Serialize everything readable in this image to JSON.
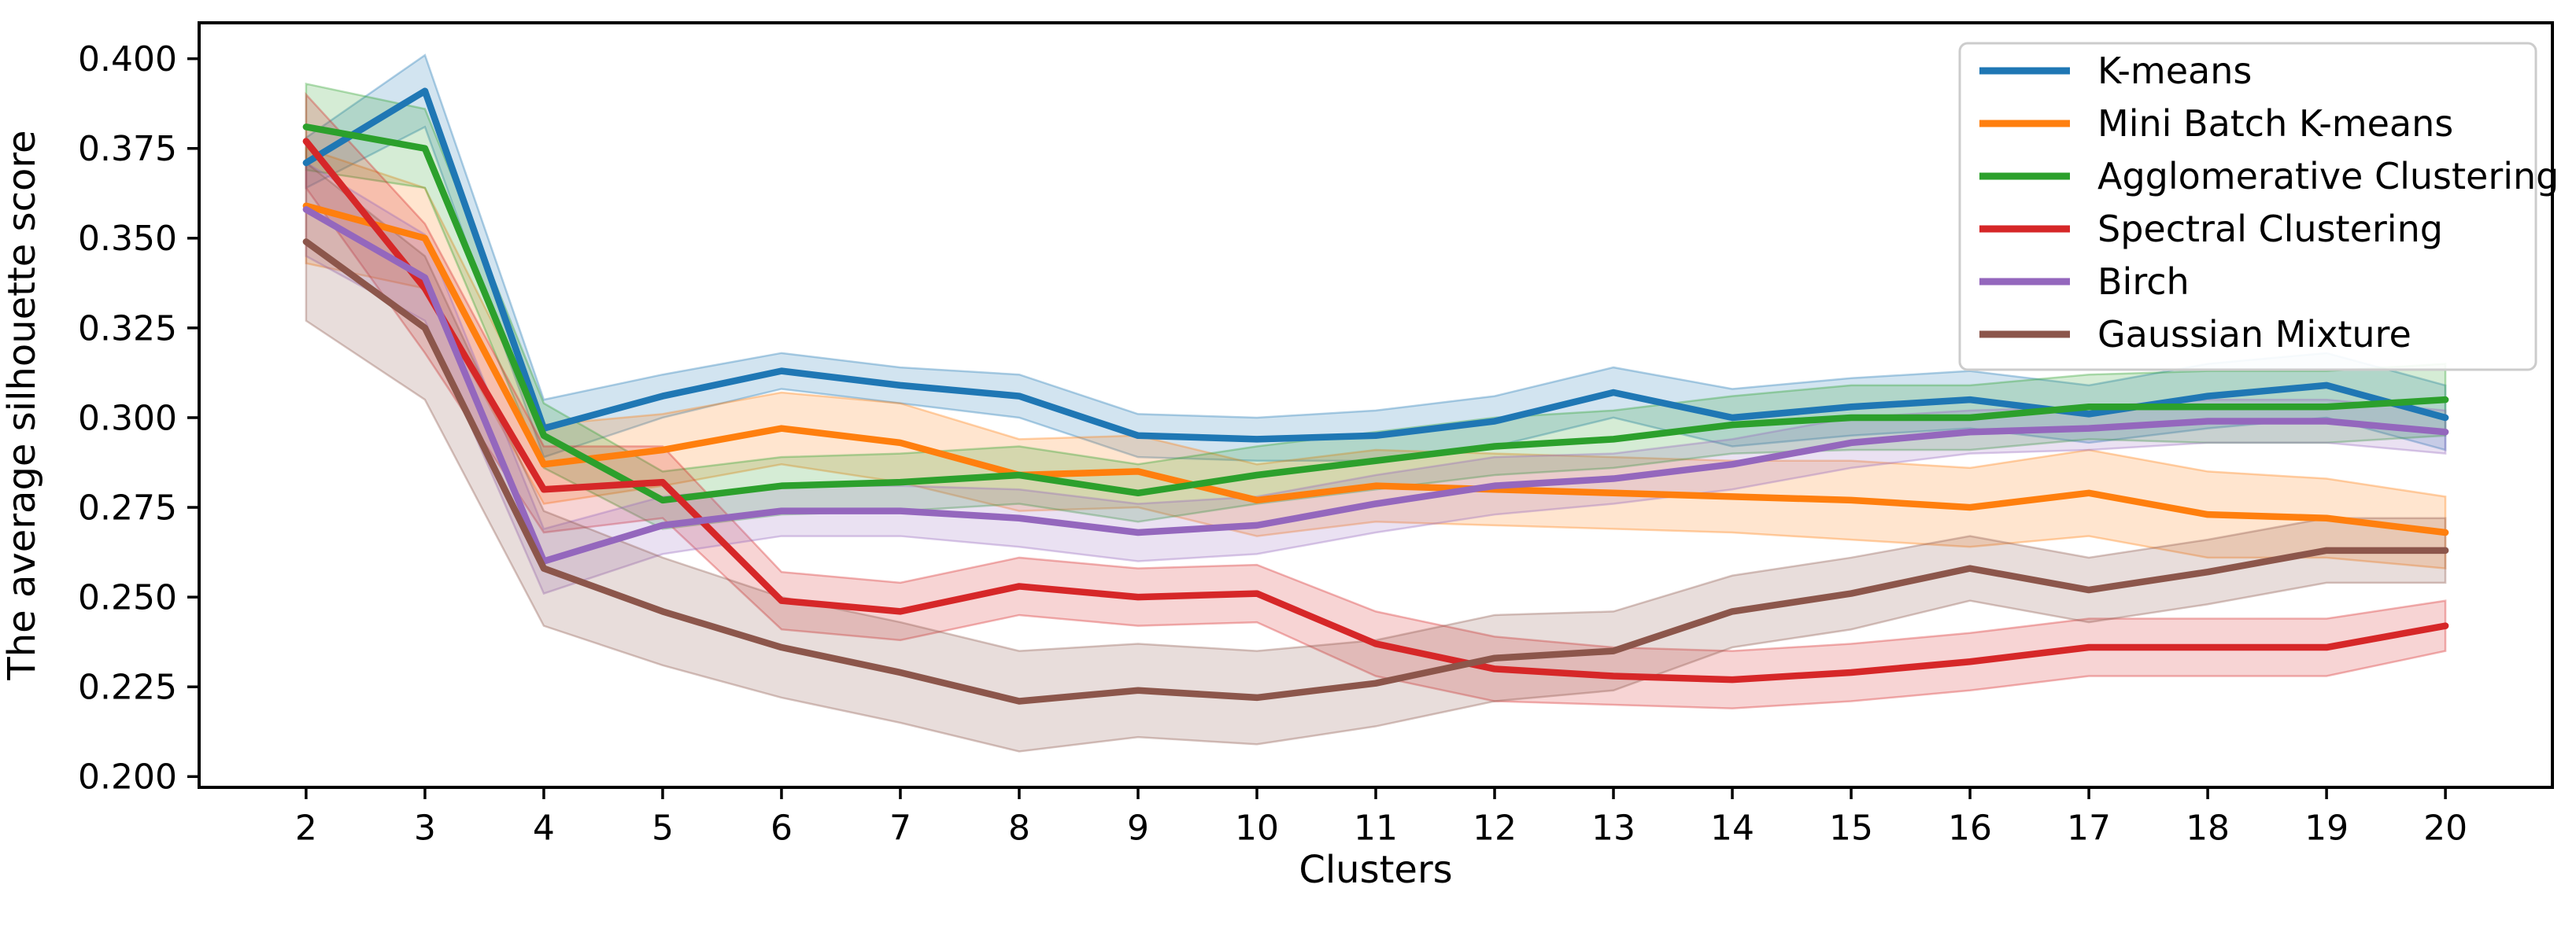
{
  "chart_data": {
    "type": "line",
    "title": "",
    "xlabel": "Clusters",
    "ylabel": "The average silhouette score",
    "grid": false,
    "legend_position": "upper right",
    "x": [
      2,
      3,
      4,
      5,
      6,
      7,
      8,
      9,
      10,
      11,
      12,
      13,
      14,
      15,
      16,
      17,
      18,
      19,
      20
    ],
    "xtick_labels": [
      "2",
      "3",
      "4",
      "5",
      "6",
      "7",
      "8",
      "9",
      "10",
      "11",
      "12",
      "13",
      "14",
      "15",
      "16",
      "17",
      "18",
      "19",
      "20"
    ],
    "yticks": [
      0.2,
      0.225,
      0.25,
      0.275,
      0.3,
      0.325,
      0.35,
      0.375,
      0.4
    ],
    "ytick_labels": [
      "0.200",
      "0.225",
      "0.250",
      "0.275",
      "0.300",
      "0.325",
      "0.350",
      "0.375",
      "0.400"
    ],
    "xlim": [
      1.1,
      20.9
    ],
    "ylim": [
      0.197,
      0.41
    ],
    "band_alpha": 0.2,
    "series": [
      {
        "name": "K-means",
        "color": "#1f77b4",
        "values": [
          0.371,
          0.391,
          0.297,
          0.306,
          0.313,
          0.309,
          0.306,
          0.295,
          0.294,
          0.295,
          0.299,
          0.307,
          0.3,
          0.303,
          0.305,
          0.301,
          0.306,
          0.309,
          0.3
        ],
        "band": [
          0.007,
          0.01,
          0.008,
          0.006,
          0.005,
          0.005,
          0.006,
          0.006,
          0.006,
          0.007,
          0.007,
          0.007,
          0.008,
          0.008,
          0.008,
          0.008,
          0.009,
          0.009,
          0.009
        ]
      },
      {
        "name": "Mini Batch K-means",
        "color": "#ff7f0e",
        "values": [
          0.359,
          0.35,
          0.287,
          0.291,
          0.297,
          0.293,
          0.284,
          0.285,
          0.277,
          0.281,
          0.28,
          0.279,
          0.278,
          0.277,
          0.275,
          0.279,
          0.273,
          0.272,
          0.268
        ],
        "band": [
          0.016,
          0.014,
          0.011,
          0.01,
          0.01,
          0.011,
          0.01,
          0.01,
          0.01,
          0.01,
          0.01,
          0.01,
          0.01,
          0.011,
          0.011,
          0.012,
          0.012,
          0.011,
          0.01
        ]
      },
      {
        "name": "Agglomerative Clustering",
        "color": "#2ca02c",
        "values": [
          0.381,
          0.375,
          0.295,
          0.277,
          0.281,
          0.282,
          0.284,
          0.279,
          0.284,
          0.288,
          0.292,
          0.294,
          0.298,
          0.3,
          0.3,
          0.303,
          0.303,
          0.303,
          0.305
        ],
        "band": [
          0.012,
          0.011,
          0.009,
          0.008,
          0.008,
          0.008,
          0.008,
          0.008,
          0.008,
          0.008,
          0.008,
          0.008,
          0.008,
          0.009,
          0.009,
          0.009,
          0.01,
          0.01,
          0.01
        ]
      },
      {
        "name": "Spectral Clustering",
        "color": "#d62728",
        "values": [
          0.377,
          0.336,
          0.28,
          0.282,
          0.249,
          0.246,
          0.253,
          0.25,
          0.251,
          0.237,
          0.23,
          0.228,
          0.227,
          0.229,
          0.232,
          0.236,
          0.236,
          0.236,
          0.242
        ],
        "band": [
          0.013,
          0.018,
          0.012,
          0.01,
          0.008,
          0.008,
          0.008,
          0.008,
          0.008,
          0.009,
          0.009,
          0.008,
          0.008,
          0.008,
          0.008,
          0.008,
          0.008,
          0.008,
          0.007
        ]
      },
      {
        "name": "Birch",
        "color": "#9467bd",
        "values": [
          0.358,
          0.339,
          0.26,
          0.27,
          0.274,
          0.274,
          0.272,
          0.268,
          0.27,
          0.276,
          0.281,
          0.283,
          0.287,
          0.293,
          0.296,
          0.297,
          0.299,
          0.299,
          0.296
        ],
        "band": [
          0.013,
          0.012,
          0.009,
          0.008,
          0.007,
          0.007,
          0.008,
          0.008,
          0.008,
          0.008,
          0.008,
          0.007,
          0.007,
          0.007,
          0.006,
          0.006,
          0.006,
          0.006,
          0.006
        ]
      },
      {
        "name": "Gaussian Mixture",
        "color": "#8c564b",
        "values": [
          0.349,
          0.325,
          0.258,
          0.246,
          0.236,
          0.229,
          0.221,
          0.224,
          0.222,
          0.226,
          0.233,
          0.235,
          0.246,
          0.251,
          0.258,
          0.252,
          0.257,
          0.263,
          0.263
        ],
        "band": [
          0.022,
          0.02,
          0.016,
          0.015,
          0.014,
          0.014,
          0.014,
          0.013,
          0.013,
          0.012,
          0.012,
          0.011,
          0.01,
          0.01,
          0.009,
          0.009,
          0.009,
          0.009,
          0.009
        ]
      }
    ]
  }
}
